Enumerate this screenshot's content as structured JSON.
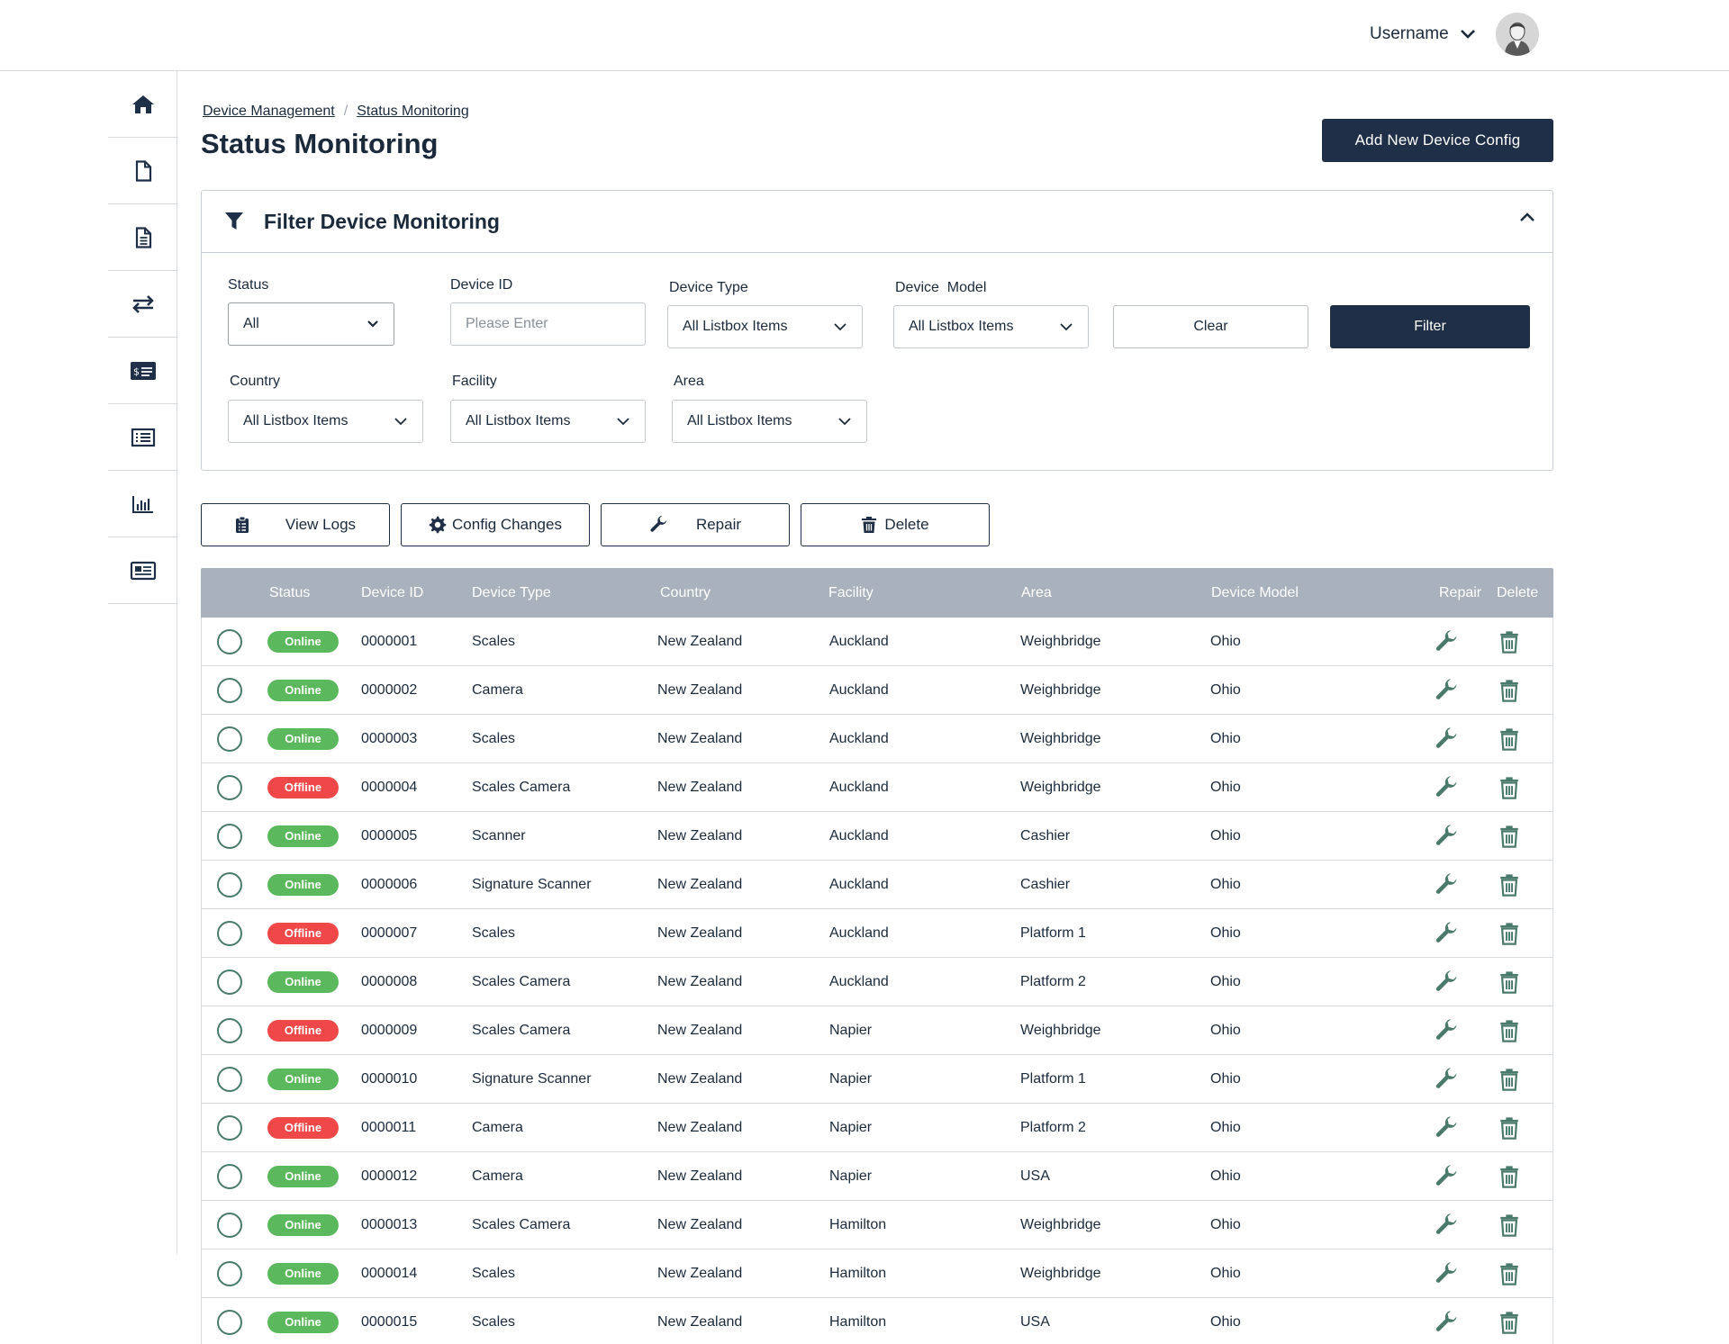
{
  "header": {
    "username": "Username"
  },
  "sidebar": {
    "items": [
      {
        "icon": "home-icon"
      },
      {
        "icon": "file-icon"
      },
      {
        "icon": "document-icon"
      },
      {
        "icon": "transfer-icon"
      },
      {
        "icon": "billing-icon"
      },
      {
        "icon": "list-icon"
      },
      {
        "icon": "chart-icon"
      },
      {
        "icon": "news-icon"
      }
    ]
  },
  "breadcrumb": [
    "Device Management",
    "Status Monitoring"
  ],
  "page": {
    "title": "Status Monitoring",
    "add_button": "Add New Device Config"
  },
  "filter": {
    "title": "Filter Device Monitoring",
    "status": {
      "label": "Status",
      "value": "All"
    },
    "device_id": {
      "label": "Device ID",
      "placeholder": "Please Enter"
    },
    "device_type": {
      "label": "Device Type",
      "value": "All Listbox Items"
    },
    "device_model": {
      "label": "Device  Model",
      "value": "All Listbox Items"
    },
    "country": {
      "label": "Country",
      "value": "All Listbox Items"
    },
    "facility": {
      "label": "Facility",
      "value": "All Listbox Items"
    },
    "area": {
      "label": "Area",
      "value": "All Listbox Items"
    },
    "clear": "Clear",
    "submit": "Filter"
  },
  "actions": {
    "view_logs": "View Logs",
    "config_changes": "Config Changes",
    "repair": "Repair",
    "delete": "Delete"
  },
  "colors": {
    "primary": "#1f2f47",
    "online": "#5cb85c",
    "offline": "#f04848",
    "icon_green": "#4a7a6b"
  },
  "table": {
    "columns": {
      "status": "Status",
      "device_id": "Device ID",
      "device_type": "Device Type",
      "country": "Country",
      "facility": "Facility",
      "area": "Area",
      "device_model": "Device Model",
      "repair": "Repair",
      "delete": "Delete"
    },
    "rows": [
      {
        "status": "Online",
        "device_id": "0000001",
        "device_type": "Scales",
        "country": "New Zealand",
        "facility": "Auckland",
        "area": "Weighbridge",
        "device_model": "Ohio"
      },
      {
        "status": "Online",
        "device_id": "0000002",
        "device_type": "Camera",
        "country": "New Zealand",
        "facility": "Auckland",
        "area": "Weighbridge",
        "device_model": "Ohio"
      },
      {
        "status": "Online",
        "device_id": "0000003",
        "device_type": "Scales",
        "country": "New Zealand",
        "facility": "Auckland",
        "area": "Weighbridge",
        "device_model": "Ohio"
      },
      {
        "status": "Offline",
        "device_id": "0000004",
        "device_type": "Scales Camera",
        "country": "New Zealand",
        "facility": "Auckland",
        "area": "Weighbridge",
        "device_model": "Ohio"
      },
      {
        "status": "Online",
        "device_id": "0000005",
        "device_type": "Scanner",
        "country": "New Zealand",
        "facility": "Auckland",
        "area": "Cashier",
        "device_model": "Ohio"
      },
      {
        "status": "Online",
        "device_id": "0000006",
        "device_type": "Signature Scanner",
        "country": "New Zealand",
        "facility": "Auckland",
        "area": "Cashier",
        "device_model": "Ohio"
      },
      {
        "status": "Offline",
        "device_id": "0000007",
        "device_type": "Scales",
        "country": "New Zealand",
        "facility": "Auckland",
        "area": "Platform 1",
        "device_model": "Ohio"
      },
      {
        "status": "Online",
        "device_id": "0000008",
        "device_type": "Scales Camera",
        "country": "New Zealand",
        "facility": "Auckland",
        "area": "Platform 2",
        "device_model": "Ohio"
      },
      {
        "status": "Offline",
        "device_id": "0000009",
        "device_type": "Scales Camera",
        "country": "New Zealand",
        "facility": "Napier",
        "area": "Weighbridge",
        "device_model": "Ohio"
      },
      {
        "status": "Online",
        "device_id": "0000010",
        "device_type": "Signature Scanner",
        "country": "New Zealand",
        "facility": "Napier",
        "area": "Platform 1",
        "device_model": "Ohio"
      },
      {
        "status": "Offline",
        "device_id": "0000011",
        "device_type": "Camera",
        "country": "New Zealand",
        "facility": "Napier",
        "area": "Platform 2",
        "device_model": "Ohio"
      },
      {
        "status": "Online",
        "device_id": "0000012",
        "device_type": "Camera",
        "country": "New Zealand",
        "facility": "Napier",
        "area": "USA",
        "device_model": "Ohio"
      },
      {
        "status": "Online",
        "device_id": "0000013",
        "device_type": "Scales Camera",
        "country": "New Zealand",
        "facility": "Hamilton",
        "area": "Weighbridge",
        "device_model": "Ohio"
      },
      {
        "status": "Online",
        "device_id": "0000014",
        "device_type": "Scales",
        "country": "New Zealand",
        "facility": "Hamilton",
        "area": "Weighbridge",
        "device_model": "Ohio"
      },
      {
        "status": "Online",
        "device_id": "0000015",
        "device_type": "Scales",
        "country": "New Zealand",
        "facility": "Hamilton",
        "area": "USA",
        "device_model": "Ohio"
      }
    ]
  }
}
